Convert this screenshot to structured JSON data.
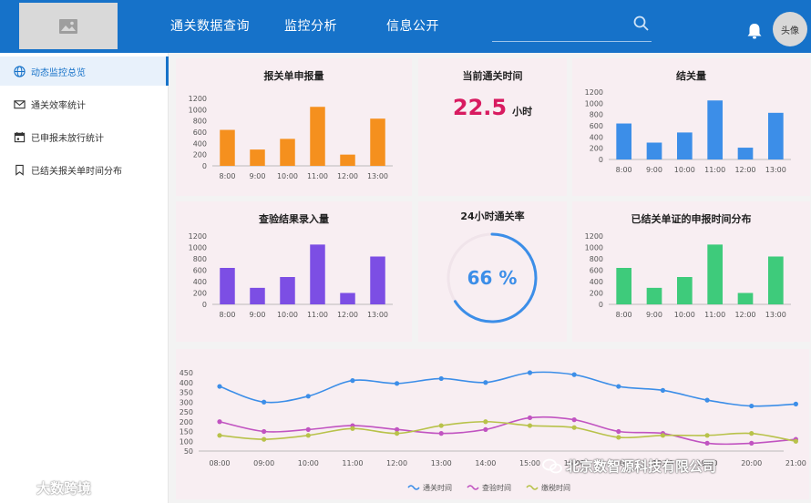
{
  "header": {
    "nav": [
      "通关数据查询",
      "监控分析",
      "信息公开"
    ],
    "avatar_label": "头像",
    "icons": {
      "logo": "image-icon",
      "search": "search-icon",
      "bell": "bell-icon"
    },
    "color": "#1672c9"
  },
  "sidebar": {
    "items": [
      {
        "label": "动态监控总览",
        "icon": "globe-icon",
        "active": true
      },
      {
        "label": "通关效率统计",
        "icon": "mail-icon",
        "active": false
      },
      {
        "label": "已申报未放行统计",
        "icon": "calendar-icon",
        "active": false
      },
      {
        "label": "已结关报关单时间分布",
        "icon": "bookmark-icon",
        "active": false
      }
    ]
  },
  "clearance_time": {
    "title": "当前通关时间",
    "value": "22.5",
    "unit": "小时"
  },
  "clearance_rate": {
    "title": "24小时通关率",
    "value": 66,
    "label": "66 %"
  },
  "chart_data": [
    {
      "id": "declarations",
      "type": "bar",
      "title": "报关单申报量",
      "categories": [
        "8:00",
        "9:00",
        "10:00",
        "11:00",
        "12:00",
        "13:00"
      ],
      "values": [
        640,
        290,
        480,
        1050,
        200,
        840
      ],
      "ylim": [
        0,
        1200
      ],
      "yticks": [
        0,
        200,
        400,
        600,
        800,
        1000,
        1200
      ],
      "color": "#f5901e"
    },
    {
      "id": "cleared",
      "type": "bar",
      "title": "结关量",
      "categories": [
        "8:00",
        "9:00",
        "10:00",
        "11:00",
        "12:00",
        "13:00"
      ],
      "values": [
        640,
        300,
        480,
        1050,
        210,
        830
      ],
      "ylim": [
        0,
        1200
      ],
      "yticks": [
        0,
        200,
        400,
        600,
        800,
        1000,
        1200
      ],
      "color": "#3c8ee8"
    },
    {
      "id": "inspection",
      "type": "bar",
      "title": "查验结果录入量",
      "categories": [
        "8:00",
        "9:00",
        "10:00",
        "11:00",
        "12:00",
        "13:00"
      ],
      "values": [
        640,
        290,
        480,
        1050,
        200,
        840
      ],
      "ylim": [
        0,
        1200
      ],
      "yticks": [
        0,
        200,
        400,
        600,
        800,
        1000,
        1200
      ],
      "color": "#7c4ee4"
    },
    {
      "id": "declaration_time",
      "type": "bar",
      "title": "已结关单证的申报时间分布",
      "categories": [
        "8:00",
        "9:00",
        "10:00",
        "11:00",
        "12:00",
        "13:00"
      ],
      "values": [
        640,
        290,
        480,
        1050,
        200,
        840
      ],
      "ylim": [
        0,
        1200
      ],
      "yticks": [
        0,
        200,
        400,
        600,
        800,
        1000,
        1200
      ],
      "color": "#3ecb7b"
    },
    {
      "id": "trend",
      "type": "line",
      "categories": [
        "08:00",
        "09:00",
        "10:00",
        "11:00",
        "12:00",
        "13:00",
        "14:00",
        "15:00",
        "16:00",
        "17:00",
        "18:00",
        "19:00",
        "20:00",
        "21:00"
      ],
      "ylim": [
        50,
        450
      ],
      "yticks": [
        50,
        100,
        150,
        200,
        250,
        300,
        350,
        400,
        450
      ],
      "series": [
        {
          "name": "通关时间",
          "color": "#3c8ee8",
          "values": [
            380,
            300,
            330,
            410,
            395,
            420,
            400,
            450,
            440,
            380,
            360,
            310,
            280,
            290
          ]
        },
        {
          "name": "查验时间",
          "color": "#c154c1",
          "values": [
            200,
            150,
            160,
            180,
            160,
            140,
            160,
            220,
            210,
            150,
            140,
            90,
            90,
            110
          ]
        },
        {
          "name": "缴税时间",
          "color": "#b8c24a",
          "values": [
            130,
            110,
            130,
            165,
            140,
            180,
            200,
            180,
            170,
            120,
            130,
            130,
            140,
            100
          ]
        }
      ],
      "legend": "bottom"
    }
  ],
  "watermarks": {
    "left": "大数跨境",
    "right": "北京数智源科技有限公司"
  }
}
